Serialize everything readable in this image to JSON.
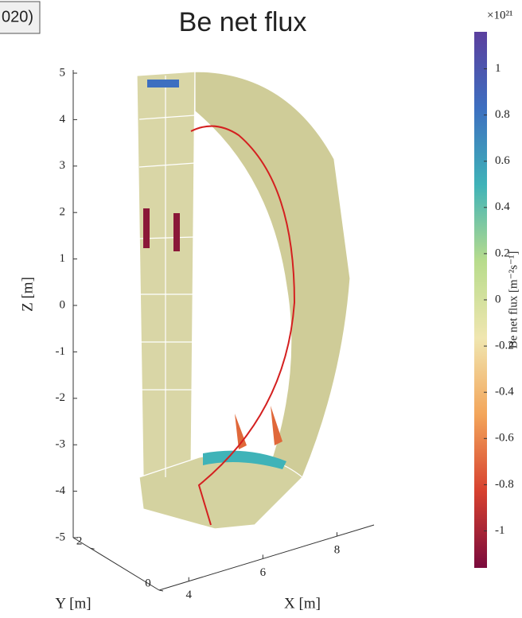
{
  "corner_label": "020)",
  "chart_data": {
    "type": "surface3d",
    "title": "Be net flux",
    "xlabel": "X [m]",
    "ylabel": "Y [m]",
    "zlabel": "Z [m]",
    "xlim": [
      3.2,
      9
    ],
    "xticks": [
      4,
      6,
      8
    ],
    "ylim": [
      0,
      2.5
    ],
    "yticks": [
      0,
      2
    ],
    "zlim": [
      -5,
      5
    ],
    "zticks": [
      -5,
      -4,
      -3,
      -2,
      -1,
      0,
      1,
      2,
      3,
      4,
      5
    ],
    "colorbar": {
      "label": "Be net flux [m⁻²s⁻¹]",
      "multiplier": "×10²¹",
      "lim": [
        -1.16,
        1.16
      ],
      "ticks": [
        -1,
        -0.8,
        -0.6,
        -0.4,
        -0.2,
        0,
        0.2,
        0.4,
        0.6,
        0.8,
        1
      ],
      "colors": [
        "#7a0a3c",
        "#d7412f",
        "#f3a55a",
        "#f0e6b0",
        "#b8dc8c",
        "#3fb3b8",
        "#3d6fc0",
        "#5b3f9e"
      ]
    }
  }
}
